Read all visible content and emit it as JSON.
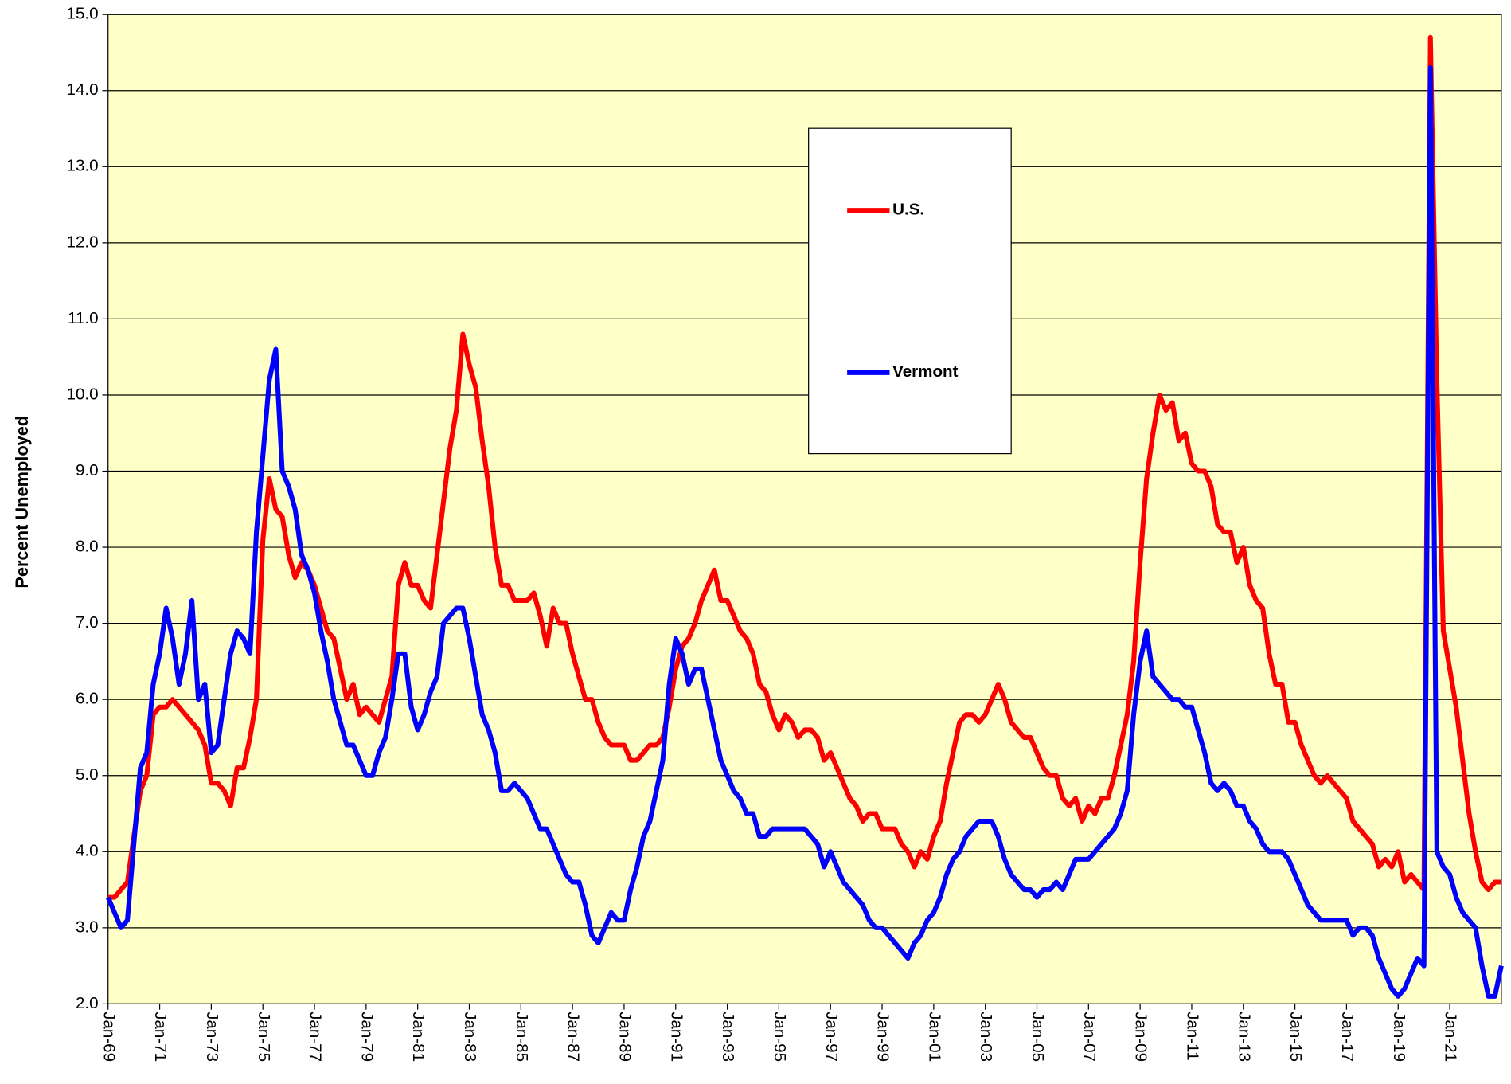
{
  "chart_data": {
    "type": "line",
    "y_label": "Percent Unemployed",
    "categories": [
      "Jan-69",
      null,
      null,
      null,
      null,
      null,
      null,
      null,
      "Jan-71",
      null,
      null,
      null,
      null,
      null,
      null,
      null,
      "Jan-73",
      null,
      null,
      null,
      null,
      null,
      null,
      null,
      "Jan-75",
      null,
      null,
      null,
      null,
      null,
      null,
      null,
      "Jan-77",
      null,
      null,
      null,
      null,
      null,
      null,
      null,
      "Jan-79",
      null,
      null,
      null,
      null,
      null,
      null,
      null,
      "Jan-81",
      null,
      null,
      null,
      null,
      null,
      null,
      null,
      "Jan-83",
      null,
      null,
      null,
      null,
      null,
      null,
      null,
      "Jan-85",
      null,
      null,
      null,
      null,
      null,
      null,
      null,
      "Jan-87",
      null,
      null,
      null,
      null,
      null,
      null,
      null,
      "Jan-89",
      null,
      null,
      null,
      null,
      null,
      null,
      null,
      "Jan-91",
      null,
      null,
      null,
      null,
      null,
      null,
      null,
      "Jan-93",
      null,
      null,
      null,
      null,
      null,
      null,
      null,
      "Jan-95",
      null,
      null,
      null,
      null,
      null,
      null,
      null,
      "Jan-97",
      null,
      null,
      null,
      null,
      null,
      null,
      null,
      "Jan-99",
      null,
      null,
      null,
      null,
      null,
      null,
      null,
      "Jan-01",
      null,
      null,
      null,
      null,
      null,
      null,
      null,
      "Jan-03",
      null,
      null,
      null,
      null,
      null,
      null,
      null,
      "Jan-05",
      null,
      null,
      null,
      null,
      null,
      null,
      null,
      "Jan-07",
      null,
      null,
      null,
      null,
      null,
      null,
      null,
      "Jan-09",
      null,
      null,
      null,
      null,
      null,
      null,
      null,
      "Jan-11",
      null,
      null,
      null,
      null,
      null,
      null,
      null,
      "Jan-13",
      null,
      null,
      null,
      null,
      null,
      null,
      null,
      "Jan-15",
      null,
      null,
      null,
      null,
      null,
      null,
      null,
      "Jan-17",
      null,
      null,
      null,
      null,
      null,
      null,
      null,
      "Jan-19",
      null,
      null,
      null,
      null,
      null,
      null,
      null,
      "Jan-21",
      null,
      null,
      null,
      null,
      null,
      null,
      null,
      null
    ],
    "series": [
      {
        "name": "U.S.",
        "color": "#ff0000",
        "values": [
          3.4,
          3.4,
          3.5,
          3.6,
          4.2,
          4.8,
          5.0,
          5.8,
          5.9,
          5.9,
          6.0,
          5.9,
          5.8,
          5.7,
          5.6,
          5.4,
          4.9,
          4.9,
          4.8,
          4.6,
          5.1,
          5.1,
          5.5,
          6.0,
          8.1,
          8.9,
          8.5,
          8.4,
          7.9,
          7.6,
          7.8,
          7.7,
          7.5,
          7.2,
          6.9,
          6.8,
          6.4,
          6.0,
          6.2,
          5.8,
          5.9,
          5.8,
          5.7,
          6.0,
          6.3,
          7.5,
          7.8,
          7.5,
          7.5,
          7.3,
          7.2,
          7.9,
          8.6,
          9.3,
          9.8,
          10.8,
          10.4,
          10.1,
          9.4,
          8.8,
          8.0,
          7.5,
          7.5,
          7.3,
          7.3,
          7.3,
          7.4,
          7.1,
          6.7,
          7.2,
          7.0,
          7.0,
          6.6,
          6.3,
          6.0,
          6.0,
          5.7,
          5.5,
          5.4,
          5.4,
          5.4,
          5.2,
          5.2,
          5.3,
          5.4,
          5.4,
          5.5,
          5.9,
          6.4,
          6.7,
          6.8,
          7.0,
          7.3,
          7.5,
          7.7,
          7.3,
          7.3,
          7.1,
          6.9,
          6.8,
          6.6,
          6.2,
          6.1,
          5.8,
          5.6,
          5.8,
          5.7,
          5.5,
          5.6,
          5.6,
          5.5,
          5.2,
          5.3,
          5.1,
          4.9,
          4.7,
          4.6,
          4.4,
          4.5,
          4.5,
          4.3,
          4.3,
          4.3,
          4.1,
          4.0,
          3.8,
          4.0,
          3.9,
          4.2,
          4.4,
          4.9,
          5.3,
          5.7,
          5.8,
          5.8,
          5.7,
          5.8,
          6.0,
          6.2,
          6.0,
          5.7,
          5.6,
          5.5,
          5.5,
          5.3,
          5.1,
          5.0,
          5.0,
          4.7,
          4.6,
          4.7,
          4.4,
          4.6,
          4.5,
          4.7,
          4.7,
          5.0,
          5.4,
          5.8,
          6.5,
          7.8,
          8.9,
          9.5,
          10.0,
          9.8,
          9.9,
          9.4,
          9.5,
          9.1,
          9.0,
          9.0,
          8.8,
          8.3,
          8.2,
          8.2,
          7.8,
          8.0,
          7.5,
          7.3,
          7.2,
          6.6,
          6.2,
          6.2,
          5.7,
          5.7,
          5.4,
          5.2,
          5.0,
          4.9,
          5.0,
          4.9,
          4.8,
          4.7,
          4.4,
          4.3,
          4.2,
          4.1,
          3.8,
          3.9,
          3.8,
          4.0,
          3.6,
          3.7,
          3.6,
          3.5,
          14.7,
          10.2,
          6.9,
          6.4,
          5.9,
          5.2,
          4.5,
          4.0,
          3.6,
          3.5,
          3.6,
          3.6
        ]
      },
      {
        "name": "Vermont",
        "color": "#0000ff",
        "values": [
          3.4,
          3.2,
          3.0,
          3.1,
          4.1,
          5.1,
          5.3,
          6.2,
          6.6,
          7.2,
          6.8,
          6.2,
          6.6,
          7.3,
          6.0,
          6.2,
          5.3,
          5.4,
          6.0,
          6.6,
          6.9,
          6.8,
          6.6,
          8.2,
          9.2,
          10.2,
          10.6,
          9.0,
          8.8,
          8.5,
          7.9,
          7.7,
          7.4,
          6.9,
          6.5,
          6.0,
          5.7,
          5.4,
          5.4,
          5.2,
          5.0,
          5.0,
          5.3,
          5.5,
          6.0,
          6.6,
          6.6,
          5.9,
          5.6,
          5.8,
          6.1,
          6.3,
          7.0,
          7.1,
          7.2,
          7.2,
          6.8,
          6.3,
          5.8,
          5.6,
          5.3,
          4.8,
          4.8,
          4.9,
          4.8,
          4.7,
          4.5,
          4.3,
          4.3,
          4.1,
          3.9,
          3.7,
          3.6,
          3.6,
          3.3,
          2.9,
          2.8,
          3.0,
          3.2,
          3.1,
          3.1,
          3.5,
          3.8,
          4.2,
          4.4,
          4.8,
          5.2,
          6.2,
          6.8,
          6.6,
          6.2,
          6.4,
          6.4,
          6.0,
          5.6,
          5.2,
          5.0,
          4.8,
          4.7,
          4.5,
          4.5,
          4.2,
          4.2,
          4.3,
          4.3,
          4.3,
          4.3,
          4.3,
          4.3,
          4.2,
          4.1,
          3.8,
          4.0,
          3.8,
          3.6,
          3.5,
          3.4,
          3.3,
          3.1,
          3.0,
          3.0,
          2.9,
          2.8,
          2.7,
          2.6,
          2.8,
          2.9,
          3.1,
          3.2,
          3.4,
          3.7,
          3.9,
          4.0,
          4.2,
          4.3,
          4.4,
          4.4,
          4.4,
          4.2,
          3.9,
          3.7,
          3.6,
          3.5,
          3.5,
          3.4,
          3.5,
          3.5,
          3.6,
          3.5,
          3.7,
          3.9,
          3.9,
          3.9,
          4.0,
          4.1,
          4.2,
          4.3,
          4.5,
          4.8,
          5.8,
          6.5,
          6.9,
          6.3,
          6.2,
          6.1,
          6.0,
          6.0,
          5.9,
          5.9,
          5.6,
          5.3,
          4.9,
          4.8,
          4.9,
          4.8,
          4.6,
          4.6,
          4.4,
          4.3,
          4.1,
          4.0,
          4.0,
          4.0,
          3.9,
          3.7,
          3.5,
          3.3,
          3.2,
          3.1,
          3.1,
          3.1,
          3.1,
          3.1,
          2.9,
          3.0,
          3.0,
          2.9,
          2.6,
          2.4,
          2.2,
          2.1,
          2.2,
          2.4,
          2.6,
          2.5,
          14.3,
          4.0,
          3.8,
          3.7,
          3.4,
          3.2,
          3.1,
          3.0,
          2.5,
          2.1,
          2.1,
          2.5
        ]
      }
    ],
    "ylim": [
      2,
      15
    ],
    "yticks": [
      {
        "value": 2,
        "label": "2.0"
      },
      {
        "value": 3,
        "label": "3.0"
      },
      {
        "value": 4,
        "label": "4.0"
      },
      {
        "value": 5,
        "label": "5.0"
      },
      {
        "value": 6,
        "label": "6.0"
      },
      {
        "value": 7,
        "label": "7.0"
      },
      {
        "value": 8,
        "label": "8.0"
      },
      {
        "value": 9,
        "label": "9.0"
      },
      {
        "value": 10,
        "label": "10.0"
      },
      {
        "value": 11,
        "label": "11.0"
      },
      {
        "value": 12,
        "label": "12.0"
      },
      {
        "value": 13,
        "label": "13.0"
      },
      {
        "value": 14,
        "label": "14.0"
      },
      {
        "value": 15,
        "label": "15.0"
      }
    ],
    "grid": true,
    "plot_background": "#ffffc8"
  }
}
